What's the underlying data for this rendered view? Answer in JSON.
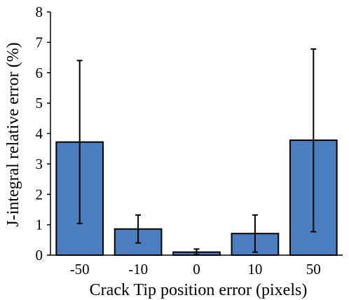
{
  "chart_data": {
    "type": "bar",
    "categories": [
      "-50",
      "-10",
      "0",
      "10",
      "50"
    ],
    "values": [
      3.72,
      0.86,
      0.1,
      0.71,
      3.78
    ],
    "error_bars": [
      {
        "low": 1.04,
        "high": 6.4
      },
      {
        "low": 0.4,
        "high": 1.32
      },
      {
        "low": 0.02,
        "high": 0.2
      },
      {
        "low": 0.1,
        "high": 1.32
      },
      {
        "low": 0.77,
        "high": 6.78
      }
    ],
    "xlabel": "Crack Tip position error (pixels)",
    "ylabel": "J-integral relative error (%)",
    "ylim": [
      0,
      8
    ],
    "yticks": [
      "0",
      "1",
      "2",
      "3",
      "4",
      "5",
      "6",
      "7",
      "8"
    ],
    "grid": false,
    "legend": "none",
    "bar_color": "#4a7ebf"
  }
}
